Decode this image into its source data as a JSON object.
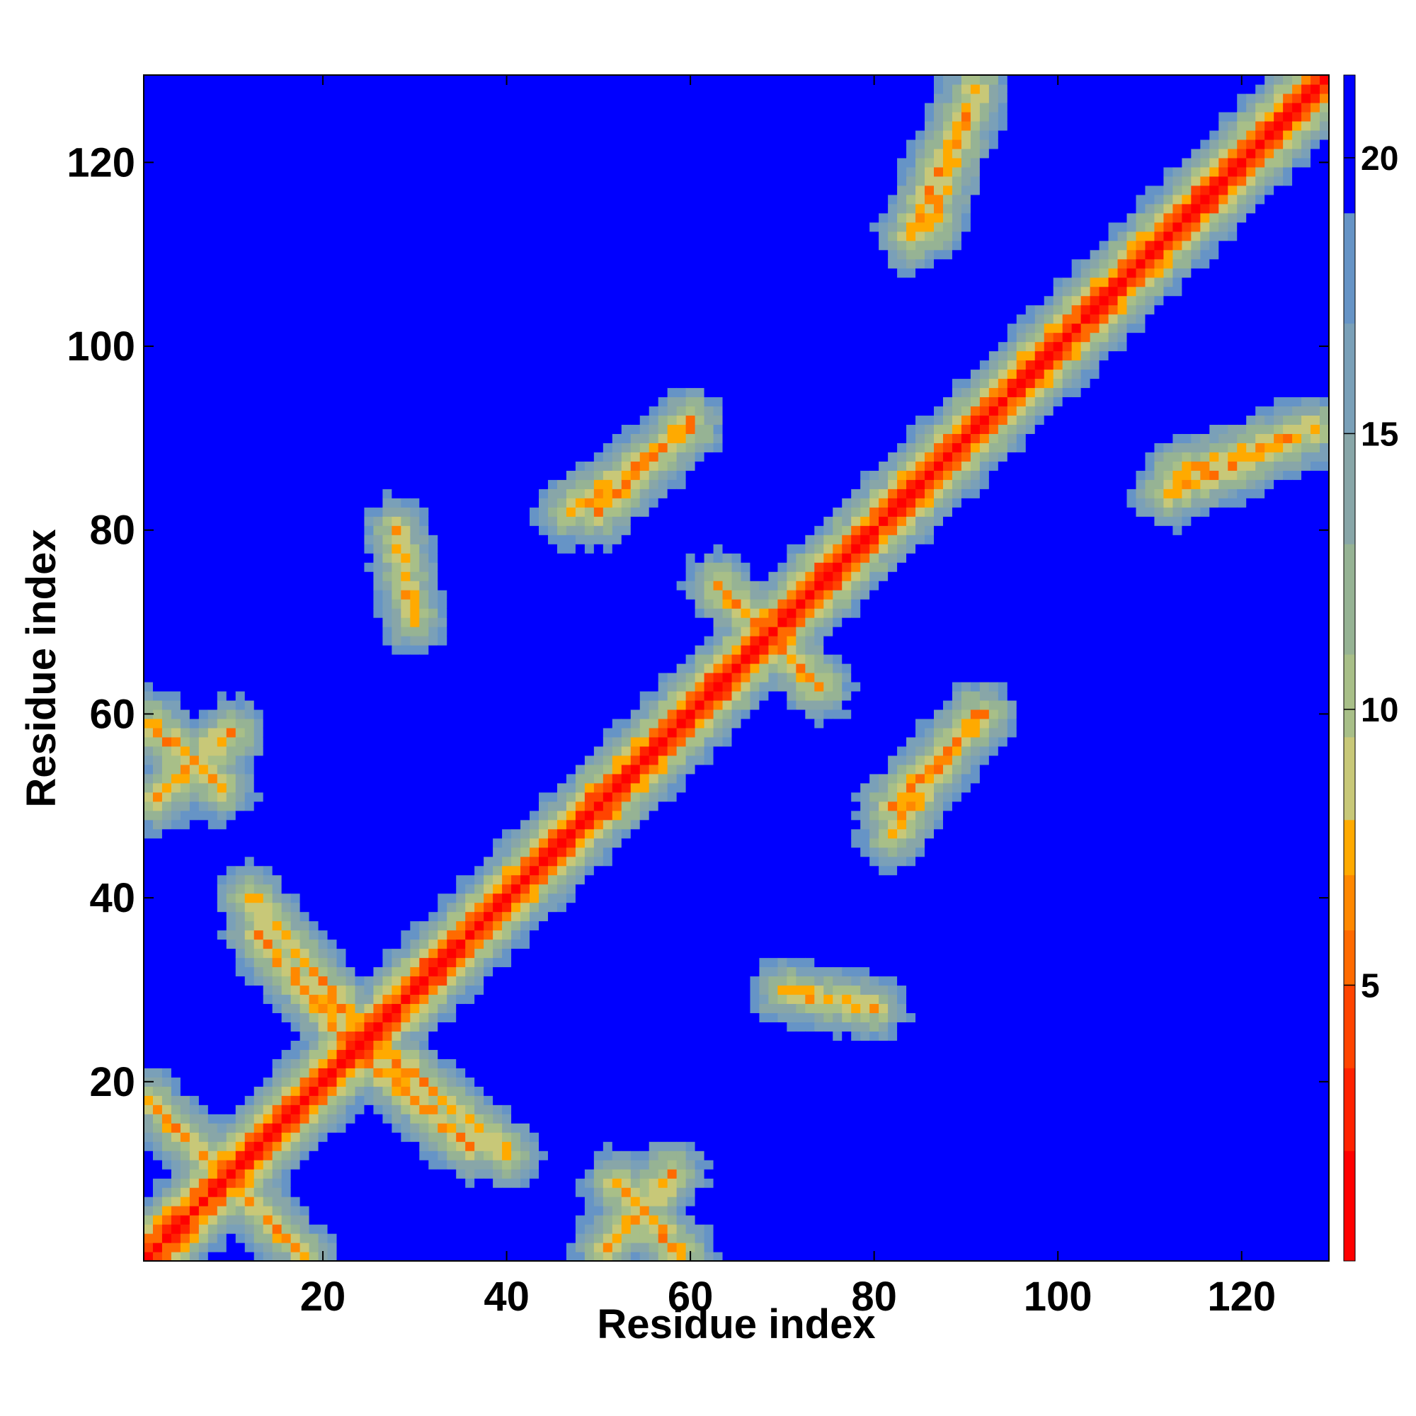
{
  "chart_data": {
    "type": "heatmap",
    "title": "",
    "xlabel": "Residue index",
    "ylabel": "Residue index",
    "n_residues": 129,
    "xlim": [
      1,
      129
    ],
    "ylim": [
      1,
      129
    ],
    "x_ticks": [
      20,
      40,
      60,
      80,
      100,
      120
    ],
    "y_ticks": [
      20,
      40,
      60,
      80,
      100,
      120
    ],
    "colorbar": {
      "ticks": [
        5,
        10,
        15,
        20
      ],
      "range": [
        0,
        21.5
      ],
      "placement": "right"
    },
    "color_bands": [
      {
        "max": 2.0,
        "color": "#ff0000"
      },
      {
        "max": 3.5,
        "color": "#ff2200"
      },
      {
        "max": 5.0,
        "color": "#ff4400"
      },
      {
        "max": 6.0,
        "color": "#ff6a00"
      },
      {
        "max": 7.0,
        "color": "#ff8800"
      },
      {
        "max": 8.0,
        "color": "#ffaa00"
      },
      {
        "max": 9.5,
        "color": "#c8c878"
      },
      {
        "max": 11.0,
        "color": "#a8bf88"
      },
      {
        "max": 13.0,
        "color": "#96b394"
      },
      {
        "max": 15.0,
        "color": "#88a6a8"
      },
      {
        "max": 17.0,
        "color": "#7aa0b8"
      },
      {
        "max": 19.0,
        "color": "#6694c6"
      },
      {
        "max": 21.5,
        "color": "#0000ff"
      }
    ],
    "diagonal": {
      "value_on_diagonal": 0,
      "value_adjacent": 3.8
    },
    "contact_segments": [
      {
        "from": [
          1,
          18
        ],
        "to": [
          18,
          1
        ],
        "value": 7
      },
      {
        "from": [
          1,
          59
        ],
        "to": [
          9,
          52
        ],
        "value": 6.5
      },
      {
        "from": [
          12,
          40
        ],
        "to": [
          24,
          26
        ],
        "value": 6.5
      },
      {
        "from": [
          22,
          25
        ],
        "to": [
          36,
          13
        ],
        "value": 6.5
      },
      {
        "from": [
          51,
          2
        ],
        "to": [
          58,
          10
        ],
        "value": 6.5
      },
      {
        "from": [
          50,
          82
        ],
        "to": [
          60,
          92
        ],
        "value": 6.5
      },
      {
        "from": [
          63,
          74
        ],
        "to": [
          72,
          65
        ],
        "value": 6.5
      },
      {
        "from": [
          82,
          47
        ],
        "to": [
          91,
          60
        ],
        "value": 6.5
      },
      {
        "from": [
          86,
          113
        ],
        "to": [
          91,
          128
        ],
        "value": 6.5
      },
      {
        "from": [
          112,
          84
        ],
        "to": [
          126,
          90
        ],
        "value": 6.5
      },
      {
        "from": [
          70,
          30
        ],
        "to": [
          80,
          28
        ],
        "value": 7
      }
    ]
  }
}
